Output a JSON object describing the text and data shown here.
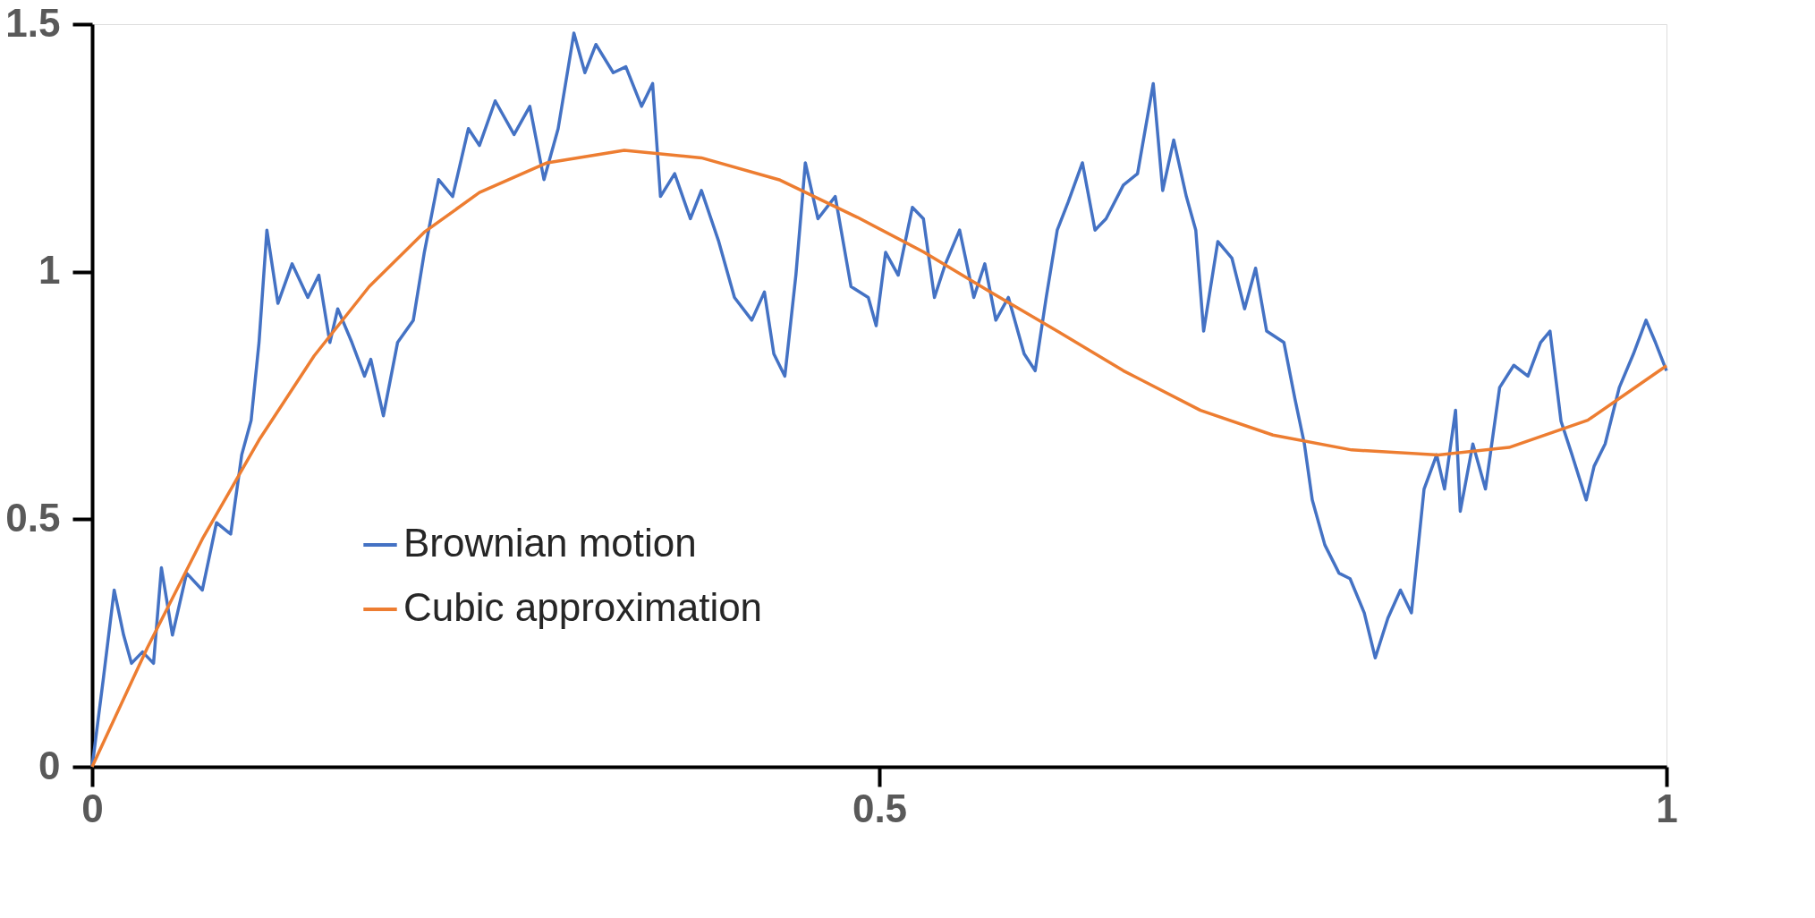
{
  "chart_data": {
    "type": "line",
    "xlim": [
      0,
      1
    ],
    "xticks": [
      0,
      0.5,
      1
    ],
    "ylim": [
      0,
      1.5
    ],
    "yticks": [
      0,
      0.5,
      1,
      1.5
    ],
    "grid": false,
    "legend": "bottom left",
    "marker": "none",
    "line_style": "solid",
    "series": [
      {
        "name": "Brownian motion",
        "color": "#4472c4",
        "x": [
          0,
          0.007,
          0.014,
          0.02,
          0.025,
          0.032,
          0.039,
          0.044,
          0.051,
          0.06,
          0.07,
          0.079,
          0.088,
          0.095,
          0.101,
          0.106,
          0.111,
          0.118,
          0.127,
          0.137,
          0.144,
          0.151,
          0.156,
          0.165,
          0.173,
          0.177,
          0.185,
          0.194,
          0.204,
          0.211,
          0.22,
          0.229,
          0.239,
          0.246,
          0.256,
          0.268,
          0.278,
          0.287,
          0.296,
          0.306,
          0.313,
          0.32,
          0.331,
          0.339,
          0.349,
          0.356,
          0.361,
          0.37,
          0.38,
          0.387,
          0.398,
          0.408,
          0.419,
          0.427,
          0.433,
          0.44,
          0.447,
          0.453,
          0.461,
          0.472,
          0.482,
          0.493,
          0.498,
          0.504,
          0.512,
          0.521,
          0.528,
          0.535,
          0.542,
          0.551,
          0.56,
          0.567,
          0.574,
          0.582,
          0.592,
          0.599,
          0.606,
          0.613,
          0.62,
          0.629,
          0.637,
          0.644,
          0.655,
          0.664,
          0.674,
          0.68,
          0.687,
          0.695,
          0.701,
          0.706,
          0.715,
          0.724,
          0.732,
          0.739,
          0.746,
          0.757,
          0.764,
          0.77,
          0.775,
          0.783,
          0.792,
          0.799,
          0.808,
          0.815,
          0.823,
          0.831,
          0.838,
          0.846,
          0.854,
          0.859,
          0.866,
          0.869,
          0.877,
          0.885,
          0.894,
          0.903,
          0.912,
          0.92,
          0.926,
          0.933,
          0.94,
          0.949,
          0.954,
          0.961,
          0.97,
          0.979,
          0.987,
          0.993,
          1.0
        ],
        "values": [
          0,
          0.175,
          0.357,
          0.266,
          0.209,
          0.232,
          0.209,
          0.402,
          0.266,
          0.391,
          0.357,
          0.493,
          0.47,
          0.63,
          0.7,
          0.857,
          1.084,
          0.936,
          1.016,
          0.948,
          0.993,
          0.857,
          0.925,
          0.857,
          0.789,
          0.823,
          0.709,
          0.857,
          0.902,
          1.039,
          1.186,
          1.152,
          1.289,
          1.255,
          1.345,
          1.277,
          1.334,
          1.186,
          1.289,
          1.482,
          1.402,
          1.459,
          1.402,
          1.414,
          1.334,
          1.38,
          1.152,
          1.198,
          1.107,
          1.164,
          1.061,
          0.948,
          0.902,
          0.959,
          0.834,
          0.789,
          0.993,
          1.22,
          1.107,
          1.152,
          0.97,
          0.948,
          0.891,
          1.039,
          0.993,
          1.13,
          1.107,
          0.948,
          1.016,
          1.084,
          0.948,
          1.016,
          0.902,
          0.948,
          0.834,
          0.8,
          0.948,
          1.084,
          1.141,
          1.22,
          1.084,
          1.107,
          1.175,
          1.198,
          1.38,
          1.164,
          1.266,
          1.152,
          1.084,
          0.88,
          1.061,
          1.027,
          0.925,
          1.007,
          0.88,
          0.857,
          0.743,
          0.652,
          0.539,
          0.448,
          0.391,
          0.38,
          0.311,
          0.22,
          0.3,
          0.357,
          0.311,
          0.561,
          0.63,
          0.561,
          0.72,
          0.516,
          0.652,
          0.561,
          0.766,
          0.811,
          0.789,
          0.857,
          0.88,
          0.698,
          0.63,
          0.539,
          0.607,
          0.652,
          0.766,
          0.834,
          0.902,
          0.857,
          0.8
        ]
      },
      {
        "name": "Cubic approximation",
        "color": "#ed7d31",
        "x": [
          0,
          0.035,
          0.07,
          0.106,
          0.141,
          0.176,
          0.211,
          0.246,
          0.289,
          0.338,
          0.387,
          0.437,
          0.486,
          0.528,
          0.57,
          0.613,
          0.655,
          0.704,
          0.75,
          0.8,
          0.855,
          0.9,
          0.95,
          1.0
        ],
        "values": [
          0,
          0.24,
          0.46,
          0.66,
          0.83,
          0.97,
          1.08,
          1.16,
          1.22,
          1.245,
          1.23,
          1.185,
          1.11,
          1.04,
          0.96,
          0.88,
          0.8,
          0.72,
          0.67,
          0.64,
          0.63,
          0.645,
          0.7,
          0.81
        ]
      }
    ]
  }
}
